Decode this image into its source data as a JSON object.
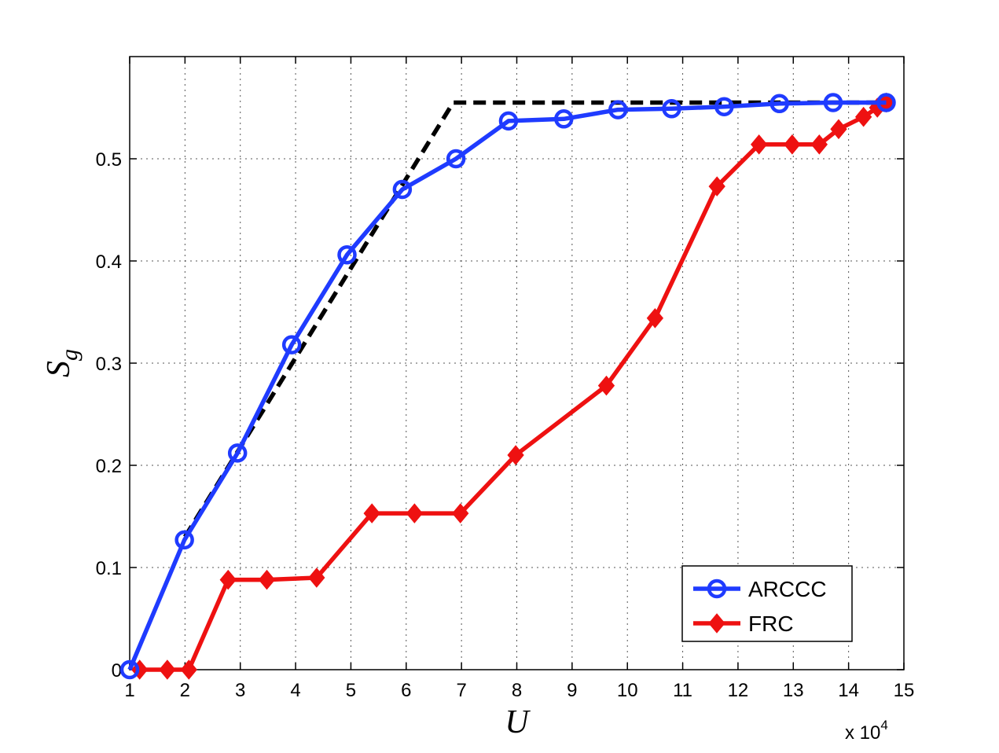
{
  "chart_data": {
    "type": "line",
    "xlabel": "U",
    "ylabel_base": "S",
    "ylabel_sub": "g",
    "x_multiplier": "x 10",
    "x_multiplier_exp": "4",
    "xlim": [
      1,
      15
    ],
    "ylim": [
      0,
      0.6
    ],
    "xticks": [
      1,
      2,
      3,
      4,
      5,
      6,
      7,
      8,
      9,
      10,
      11,
      12,
      13,
      14,
      15
    ],
    "yticks": [
      0,
      0.1,
      0.2,
      0.3,
      0.4,
      0.5
    ],
    "ytick_labels": [
      "0",
      "0.1",
      "0.2",
      "0.3",
      "0.4",
      "0.5"
    ],
    "grid": true,
    "legend_position": "bottom-right",
    "series": [
      {
        "name": "ARCCC",
        "color": "#1f3bff",
        "marker": "circle",
        "x": [
          1,
          1.99,
          2.95,
          3.93,
          4.93,
          5.93,
          6.9,
          7.85,
          8.85,
          9.83,
          10.8,
          11.75,
          12.75,
          13.72,
          14.68
        ],
        "y": [
          0,
          0.127,
          0.212,
          0.318,
          0.406,
          0.47,
          0.5,
          0.537,
          0.539,
          0.548,
          0.549,
          0.551,
          0.554,
          0.555,
          0.555
        ]
      },
      {
        "name": "FRC",
        "color": "#ee1111",
        "marker": "diamond",
        "x": [
          1.18,
          1.68,
          2.07,
          2.78,
          3.48,
          4.38,
          5.38,
          6.15,
          6.98,
          7.98,
          9.62,
          10.5,
          11.62,
          12.38,
          12.98,
          13.47,
          13.82,
          14.27,
          14.52,
          14.68
        ],
        "y": [
          0,
          0,
          0,
          0.088,
          0.088,
          0.09,
          0.153,
          0.153,
          0.153,
          0.21,
          0.278,
          0.344,
          0.473,
          0.514,
          0.514,
          0.514,
          0.529,
          0.541,
          0.55,
          0.555
        ]
      },
      {
        "color": "#000000",
        "style": "dashed",
        "x": [
          2,
          6.85,
          14.68
        ],
        "y": [
          0.13,
          0.555,
          0.555
        ]
      }
    ]
  }
}
